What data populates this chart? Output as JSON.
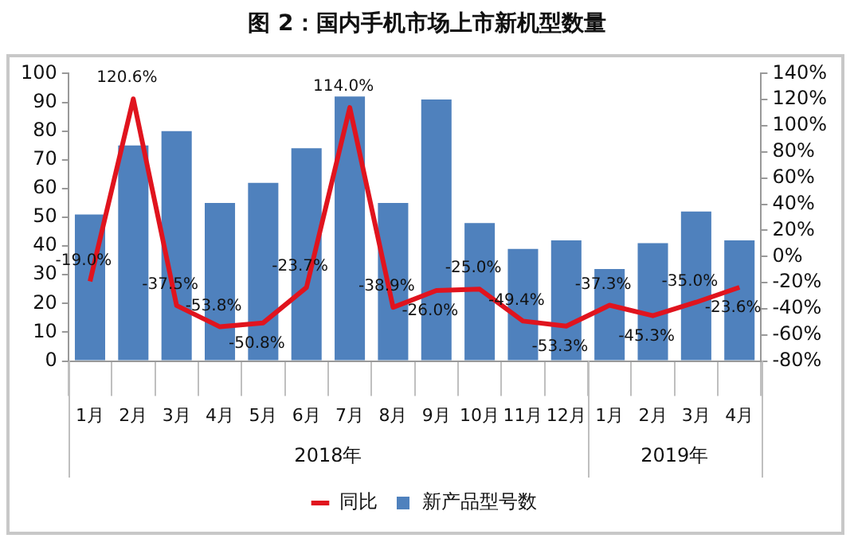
{
  "chart_data": {
    "type": "bar",
    "title": "图 2：国内手机市场上市新机型数量",
    "categories": [
      "1月",
      "2月",
      "3月",
      "4月",
      "5月",
      "6月",
      "7月",
      "8月",
      "9月",
      "10月",
      "11月",
      "12月",
      "1月",
      "2月",
      "3月",
      "4月"
    ],
    "series": [
      {
        "name": "新产品型号数",
        "color": "#4f81bd",
        "values": [
          51,
          75,
          80,
          55,
          62,
          74,
          92,
          55,
          91,
          48,
          39,
          42,
          32,
          41,
          52,
          42
        ]
      },
      {
        "name": "同比",
        "type": "line",
        "axis": "y2",
        "color": "#e0141e",
        "marker": "none",
        "values": [
          -19.0,
          120.6,
          -37.5,
          -53.8,
          -50.8,
          -23.7,
          114.0,
          -38.9,
          -26.0,
          -25.0,
          -49.4,
          -53.3,
          -37.3,
          -45.3,
          -35.0,
          -23.6
        ],
        "value_labels": [
          "-19.0%",
          "120.6%",
          "-37.5%",
          "-53.8%",
          "-50.8%",
          "-23.7%",
          "114.0%",
          "-38.9%",
          "-26.0%",
          "-25.0%",
          "-49.4%",
          "-53.3%",
          "-37.3%",
          "-45.3%",
          "-35.0%",
          "-23.6%"
        ]
      }
    ],
    "ylim": [
      0,
      100
    ],
    "yticks": [
      0,
      10,
      20,
      30,
      40,
      50,
      60,
      70,
      80,
      90,
      100
    ],
    "y2lim": [
      -80,
      140
    ],
    "y2ticks": [
      {
        "value": -80,
        "label": "-80%"
      },
      {
        "value": -60,
        "label": "-60%"
      },
      {
        "value": -40,
        "label": "-40%"
      },
      {
        "value": -20,
        "label": "-20%"
      },
      {
        "value": 0,
        "label": "0%"
      },
      {
        "value": 20,
        "label": "20%"
      },
      {
        "value": 40,
        "label": "40%"
      },
      {
        "value": 60,
        "label": "60%"
      },
      {
        "value": 80,
        "label": "80%"
      },
      {
        "value": 100,
        "label": "100%"
      },
      {
        "value": 120,
        "label": "120%"
      },
      {
        "value": 140,
        "label": "140%"
      }
    ],
    "annotations": [
      "2018年",
      "2019年"
    ],
    "grid": false,
    "legend": "bottom"
  }
}
